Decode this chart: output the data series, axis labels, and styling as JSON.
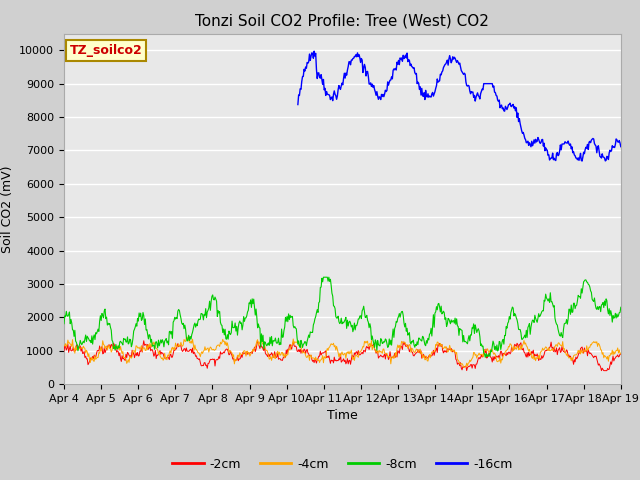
{
  "title": "Tonzi Soil CO2 Profile: Tree (West) CO2",
  "ylabel": "Soil CO2 (mV)",
  "xlabel": "Time",
  "legend_label": "TZ_soilco2",
  "legend_entries": [
    "-2cm",
    "-4cm",
    "-8cm",
    "-16cm"
  ],
  "legend_colors": [
    "#ff0000",
    "#ffa500",
    "#00cc00",
    "#0000ff"
  ],
  "ylim": [
    0,
    10500
  ],
  "yticks": [
    0,
    1000,
    2000,
    3000,
    4000,
    5000,
    6000,
    7000,
    8000,
    9000,
    10000
  ],
  "xtick_labels": [
    "Apr 4",
    "Apr 5",
    "Apr 6",
    "Apr 7",
    "Apr 8",
    "Apr 9",
    "Apr 10",
    "Apr 11",
    "Apr 12",
    "Apr 13",
    "Apr 14",
    "Apr 15",
    "Apr 16",
    "Apr 17",
    "Apr 18",
    "Apr 19"
  ],
  "fig_bg_color": "#d0d0d0",
  "plot_bg_color": "#e8e8e8",
  "title_fontsize": 11,
  "axis_fontsize": 9,
  "tick_fontsize": 8,
  "legend_fontsize": 9
}
